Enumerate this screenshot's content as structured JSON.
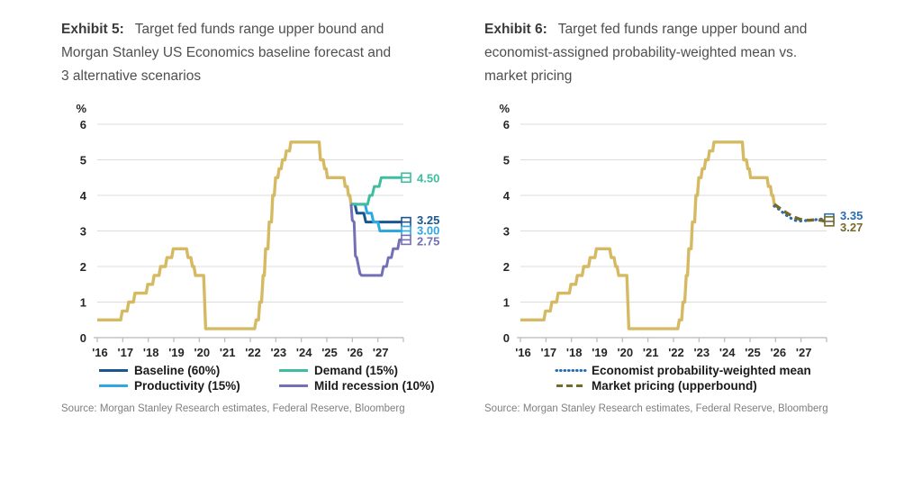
{
  "page": {
    "background": "#ffffff"
  },
  "chart_data": [
    {
      "type": "line",
      "exhibit_label": "Exhibit 5:",
      "title": "Target fed funds range upper bound and Morgan Stanley US Economics baseline forecast and 3 alternative scenarios",
      "title_lines": [
        "Target fed funds range upper bound and",
        "Morgan Stanley US Economics baseline forecast and",
        "3 alternative scenarios"
      ],
      "ylabel": "%",
      "ylim": [
        0,
        6
      ],
      "yticks": [
        0,
        1,
        2,
        3,
        4,
        5,
        6
      ],
      "xlim": [
        2016,
        2028
      ],
      "xtick_labels": [
        "'16",
        "'17",
        "'18",
        "'19",
        "'20",
        "'21",
        "'22",
        "'23",
        "'24",
        "'25",
        "'26",
        "'27"
      ],
      "grid": "horizontal",
      "legend_position": "bottom",
      "legend_order": [
        1,
        3,
        2,
        4
      ],
      "source": "Source: Morgan Stanley Research estimates, Federal Reserve, Bloomberg",
      "series": [
        {
          "name": "Target fed funds upper bound (history)",
          "color": "#D5BA63",
          "style": "solid",
          "width": 3.4,
          "points": [
            [
              2016.0,
              0.5
            ],
            [
              2016.92,
              0.5
            ],
            [
              2016.98,
              0.75
            ],
            [
              2017.17,
              0.75
            ],
            [
              2017.23,
              1.0
            ],
            [
              2017.42,
              1.0
            ],
            [
              2017.48,
              1.25
            ],
            [
              2017.92,
              1.25
            ],
            [
              2017.98,
              1.5
            ],
            [
              2018.17,
              1.5
            ],
            [
              2018.23,
              1.75
            ],
            [
              2018.42,
              1.75
            ],
            [
              2018.48,
              2.0
            ],
            [
              2018.67,
              2.0
            ],
            [
              2018.73,
              2.25
            ],
            [
              2018.92,
              2.25
            ],
            [
              2018.98,
              2.5
            ],
            [
              2019.5,
              2.5
            ],
            [
              2019.56,
              2.25
            ],
            [
              2019.67,
              2.25
            ],
            [
              2019.73,
              2.0
            ],
            [
              2019.79,
              2.0
            ],
            [
              2019.85,
              1.75
            ],
            [
              2020.17,
              1.75
            ],
            [
              2020.25,
              0.25
            ],
            [
              2022.17,
              0.25
            ],
            [
              2022.23,
              0.5
            ],
            [
              2022.32,
              0.5
            ],
            [
              2022.37,
              1.0
            ],
            [
              2022.44,
              1.0
            ],
            [
              2022.5,
              1.75
            ],
            [
              2022.55,
              1.75
            ],
            [
              2022.6,
              2.5
            ],
            [
              2022.69,
              2.5
            ],
            [
              2022.74,
              3.25
            ],
            [
              2022.83,
              3.25
            ],
            [
              2022.88,
              4.0
            ],
            [
              2022.94,
              4.0
            ],
            [
              2022.99,
              4.5
            ],
            [
              2023.08,
              4.5
            ],
            [
              2023.13,
              4.75
            ],
            [
              2023.21,
              4.75
            ],
            [
              2023.26,
              5.0
            ],
            [
              2023.36,
              5.0
            ],
            [
              2023.41,
              5.25
            ],
            [
              2023.54,
              5.25
            ],
            [
              2023.59,
              5.5
            ],
            [
              2024.7,
              5.5
            ],
            [
              2024.75,
              5.0
            ],
            [
              2024.86,
              5.0
            ],
            [
              2024.91,
              4.75
            ],
            [
              2024.97,
              4.75
            ],
            [
              2025.02,
              4.5
            ],
            [
              2025.67,
              4.5
            ],
            [
              2025.72,
              4.25
            ],
            [
              2025.8,
              4.25
            ],
            [
              2025.85,
              4.0
            ],
            [
              2025.9,
              4.0
            ],
            [
              2025.95,
              3.75
            ]
          ]
        },
        {
          "name": "Baseline (60%)",
          "color": "#1A568F",
          "style": "solid",
          "width": 3,
          "end_label": "3.25",
          "label_at": 3.32,
          "points": [
            [
              2025.95,
              3.75
            ],
            [
              2026.1,
              3.75
            ],
            [
              2026.18,
              3.5
            ],
            [
              2026.45,
              3.5
            ],
            [
              2026.53,
              3.25
            ],
            [
              2028,
              3.25
            ]
          ]
        },
        {
          "name": "Productivity (15%)",
          "color": "#2BA9E0",
          "style": "solid",
          "width": 3,
          "end_label": "3.00",
          "label_at": 3.02,
          "points": [
            [
              2025.95,
              3.75
            ],
            [
              2026.5,
              3.75
            ],
            [
              2026.58,
              3.5
            ],
            [
              2026.75,
              3.5
            ],
            [
              2026.83,
              3.25
            ],
            [
              2027.0,
              3.25
            ],
            [
              2027.08,
              3.0
            ],
            [
              2028,
              3.0
            ]
          ]
        },
        {
          "name": "Demand (15%)",
          "color": "#3FBDA0",
          "style": "solid",
          "width": 3,
          "end_label": "4.50",
          "label_at": 4.5,
          "points": [
            [
              2025.95,
              3.75
            ],
            [
              2026.6,
              3.75
            ],
            [
              2026.68,
              4.0
            ],
            [
              2026.78,
              4.0
            ],
            [
              2026.86,
              4.25
            ],
            [
              2027.05,
              4.25
            ],
            [
              2027.13,
              4.5
            ],
            [
              2028,
              4.5
            ]
          ]
        },
        {
          "name": "Mild recession (10%)",
          "color": "#7370B5",
          "style": "solid",
          "width": 3,
          "end_label": "2.75",
          "label_at": 2.72,
          "points": [
            [
              2025.95,
              3.75
            ],
            [
              2026.0,
              3.3
            ],
            [
              2026.07,
              3.25
            ],
            [
              2026.12,
              2.3
            ],
            [
              2026.17,
              2.25
            ],
            [
              2026.3,
              1.8
            ],
            [
              2026.36,
              1.75
            ],
            [
              2027.15,
              1.75
            ],
            [
              2027.22,
              2.0
            ],
            [
              2027.34,
              2.0
            ],
            [
              2027.41,
              2.25
            ],
            [
              2027.53,
              2.25
            ],
            [
              2027.6,
              2.5
            ],
            [
              2027.78,
              2.5
            ],
            [
              2027.85,
              2.75
            ],
            [
              2028,
              2.75
            ]
          ]
        }
      ]
    },
    {
      "type": "line",
      "exhibit_label": "Exhibit 6:",
      "title": "Target fed funds range upper bound and economist-assigned probability-weighted mean vs. market pricing",
      "title_lines": [
        "Target fed funds range upper bound and",
        "economist-assigned probability-weighted mean vs.",
        "market pricing"
      ],
      "ylabel": "%",
      "ylim": [
        0,
        6
      ],
      "yticks": [
        0,
        1,
        2,
        3,
        4,
        5,
        6
      ],
      "xlim": [
        2016,
        2028
      ],
      "xtick_labels": [
        "'16",
        "'17",
        "'18",
        "'19",
        "'20",
        "'21",
        "'22",
        "'23",
        "'24",
        "'25",
        "'26",
        "'27"
      ],
      "grid": "horizontal",
      "legend_position": "bottom",
      "legend_order": [
        1,
        2
      ],
      "source": "Source: Morgan Stanley Research estimates, Federal Reserve, Bloomberg",
      "series": [
        {
          "name": "Target fed funds upper bound (history)",
          "color": "#D5BA63",
          "style": "solid",
          "width": 3.4,
          "points": [
            [
              2016.0,
              0.5
            ],
            [
              2016.92,
              0.5
            ],
            [
              2016.98,
              0.75
            ],
            [
              2017.17,
              0.75
            ],
            [
              2017.23,
              1.0
            ],
            [
              2017.42,
              1.0
            ],
            [
              2017.48,
              1.25
            ],
            [
              2017.92,
              1.25
            ],
            [
              2017.98,
              1.5
            ],
            [
              2018.17,
              1.5
            ],
            [
              2018.23,
              1.75
            ],
            [
              2018.42,
              1.75
            ],
            [
              2018.48,
              2.0
            ],
            [
              2018.67,
              2.0
            ],
            [
              2018.73,
              2.25
            ],
            [
              2018.92,
              2.25
            ],
            [
              2018.98,
              2.5
            ],
            [
              2019.5,
              2.5
            ],
            [
              2019.56,
              2.25
            ],
            [
              2019.67,
              2.25
            ],
            [
              2019.73,
              2.0
            ],
            [
              2019.79,
              2.0
            ],
            [
              2019.85,
              1.75
            ],
            [
              2020.17,
              1.75
            ],
            [
              2020.25,
              0.25
            ],
            [
              2022.17,
              0.25
            ],
            [
              2022.23,
              0.5
            ],
            [
              2022.32,
              0.5
            ],
            [
              2022.37,
              1.0
            ],
            [
              2022.44,
              1.0
            ],
            [
              2022.5,
              1.75
            ],
            [
              2022.55,
              1.75
            ],
            [
              2022.6,
              2.5
            ],
            [
              2022.69,
              2.5
            ],
            [
              2022.74,
              3.25
            ],
            [
              2022.83,
              3.25
            ],
            [
              2022.88,
              4.0
            ],
            [
              2022.94,
              4.0
            ],
            [
              2022.99,
              4.5
            ],
            [
              2023.08,
              4.5
            ],
            [
              2023.13,
              4.75
            ],
            [
              2023.21,
              4.75
            ],
            [
              2023.26,
              5.0
            ],
            [
              2023.36,
              5.0
            ],
            [
              2023.41,
              5.25
            ],
            [
              2023.54,
              5.25
            ],
            [
              2023.59,
              5.5
            ],
            [
              2024.7,
              5.5
            ],
            [
              2024.75,
              5.0
            ],
            [
              2024.86,
              5.0
            ],
            [
              2024.91,
              4.75
            ],
            [
              2024.97,
              4.75
            ],
            [
              2025.02,
              4.5
            ],
            [
              2025.67,
              4.5
            ],
            [
              2025.72,
              4.25
            ],
            [
              2025.8,
              4.25
            ],
            [
              2025.85,
              4.0
            ],
            [
              2025.9,
              4.0
            ],
            [
              2025.95,
              3.75
            ]
          ]
        },
        {
          "name": "Economist probability-weighted mean",
          "color": "#2A6CB0",
          "style": "dotted",
          "width": 3.2,
          "end_label": "3.35",
          "label_at": 3.44,
          "points": [
            [
              2025.95,
              3.7
            ],
            [
              2026.15,
              3.6
            ],
            [
              2026.35,
              3.48
            ],
            [
              2026.55,
              3.38
            ],
            [
              2026.75,
              3.3
            ],
            [
              2027.0,
              3.28
            ],
            [
              2027.3,
              3.3
            ],
            [
              2027.6,
              3.32
            ],
            [
              2028,
              3.35
            ]
          ]
        },
        {
          "name": "Market pricing (upperbound)",
          "color": "#756A2B",
          "style": "dashed",
          "width": 3.4,
          "end_label": "3.27",
          "label_at": 3.12,
          "points": [
            [
              2025.95,
              3.75
            ],
            [
              2026.2,
              3.62
            ],
            [
              2026.45,
              3.5
            ],
            [
              2026.7,
              3.4
            ],
            [
              2026.95,
              3.33
            ],
            [
              2027.3,
              3.3
            ],
            [
              2027.6,
              3.32
            ],
            [
              2028,
              3.27
            ]
          ]
        }
      ]
    }
  ]
}
